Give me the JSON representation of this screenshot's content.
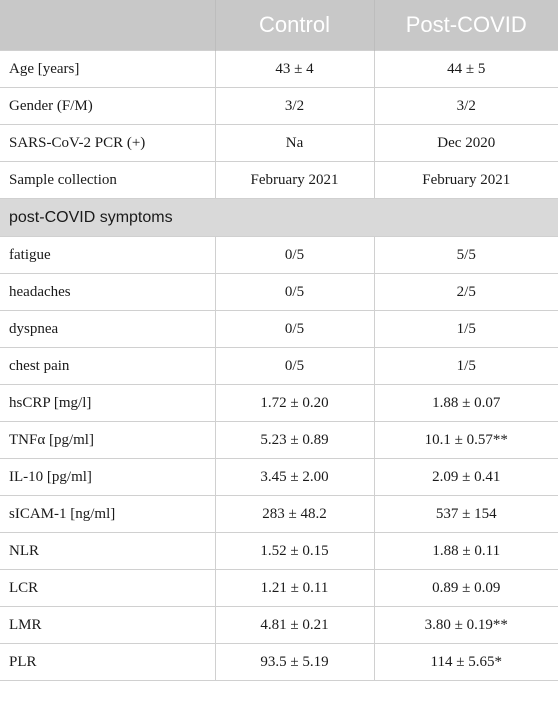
{
  "header": {
    "col1": "",
    "col2": "Control",
    "col3": "Post-COVID"
  },
  "rows_top": [
    {
      "label": "Age [years]",
      "control": "43 ± 4",
      "post": "44 ± 5"
    },
    {
      "label": "Gender (F/M)",
      "control": "3/2",
      "post": "3/2"
    },
    {
      "label": "SARS-CoV-2 PCR (+)",
      "control": "Na",
      "post": "Dec 2020"
    },
    {
      "label": "Sample collection",
      "control": "February 2021",
      "post": "February 2021"
    }
  ],
  "section_title": "post-COVID symptoms",
  "rows_bottom": [
    {
      "label": "fatigue",
      "control": "0/5",
      "post": "5/5"
    },
    {
      "label": "headaches",
      "control": "0/5",
      "post": "2/5"
    },
    {
      "label": "dyspnea",
      "control": "0/5",
      "post": "1/5"
    },
    {
      "label": "chest pain",
      "control": "0/5",
      "post": "1/5"
    },
    {
      "label": "hsCRP [mg/l]",
      "control": "1.72 ± 0.20",
      "post": "1.88 ± 0.07"
    },
    {
      "label": "TNFα [pg/ml]",
      "control": "5.23 ± 0.89",
      "post": "10.1 ± 0.57**"
    },
    {
      "label": "IL-10 [pg/ml]",
      "control": "3.45 ± 2.00",
      "post": "2.09 ± 0.41"
    },
    {
      "label": "sICAM-1 [ng/ml]",
      "control": "283 ± 48.2",
      "post": "537 ± 154"
    },
    {
      "label": "NLR",
      "control": "1.52 ± 0.15",
      "post": "1.88 ± 0.11"
    },
    {
      "label": "LCR",
      "control": "1.21 ± 0.11",
      "post": "0.89 ± 0.09"
    },
    {
      "label": "LMR",
      "control": "4.81 ± 0.21",
      "post": "3.80 ± 0.19**"
    },
    {
      "label": "PLR",
      "control": "93.5 ± 5.19",
      "post": "114 ± 5.65*"
    }
  ]
}
